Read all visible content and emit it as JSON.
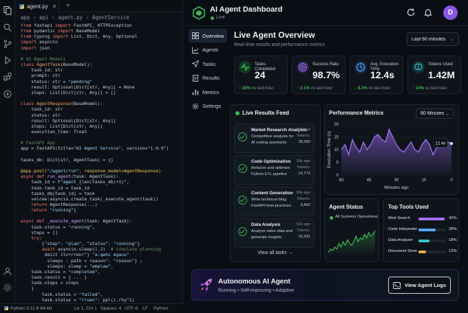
{
  "editor": {
    "tab_label": "agent.py",
    "breadcrumb": "app  ›  api  ›  agent.py  ›  AgentService",
    "code_lines": [
      [
        [
          "kw",
          "from "
        ],
        [
          "t",
          "fastapi "
        ],
        [
          "kw",
          "import "
        ],
        [
          "t",
          "FastAPI, HTTPException"
        ]
      ],
      [
        [
          "kw",
          "from "
        ],
        [
          "t",
          "pydantic "
        ],
        [
          "kw",
          "import "
        ],
        [
          "t",
          "BaseModel"
        ]
      ],
      [
        [
          "kw",
          "from "
        ],
        [
          "t",
          "typing "
        ],
        [
          "kw",
          "import "
        ],
        [
          "t",
          "List, Dict, Any, Optional"
        ]
      ],
      [
        [
          "kw",
          "import "
        ],
        [
          "t",
          "asyncio"
        ]
      ],
      [
        [
          "kw",
          "import "
        ],
        [
          "t",
          "json"
        ]
      ],
      [
        [
          "t",
          ""
        ]
      ],
      [
        [
          "cm",
          "# AI Agent Models"
        ]
      ],
      [
        [
          "kw",
          "class "
        ],
        [
          "ty",
          "AgentTask"
        ],
        [
          "t",
          "(BaseModel):"
        ]
      ],
      [
        [
          "t",
          "    task_id: str"
        ]
      ],
      [
        [
          "t",
          "    prompt: str"
        ]
      ],
      [
        [
          "t",
          "    status: str = "
        ],
        [
          "st",
          "\"pending\""
        ]
      ],
      [
        [
          "t",
          "    result: Optional[Dict[str, Any]] = None"
        ]
      ],
      [
        [
          "t",
          "    steps: List[Dict[str, Any]] = []"
        ]
      ],
      [
        [
          "t",
          ""
        ]
      ],
      [
        [
          "kw",
          "class "
        ],
        [
          "ty",
          "AgentResponse"
        ],
        [
          "t",
          "(BaseModel):"
        ]
      ],
      [
        [
          "t",
          "    task_id: str"
        ]
      ],
      [
        [
          "t",
          "    status: str"
        ]
      ],
      [
        [
          "t",
          "    result: Optional[Dict[str, Any]]"
        ]
      ],
      [
        [
          "t",
          "    steps: List[Dict[str, Any]]"
        ]
      ],
      [
        [
          "t",
          "    execution_time: float"
        ]
      ],
      [
        [
          "t",
          ""
        ]
      ],
      [
        [
          "cm",
          "# FastAPI App"
        ]
      ],
      [
        [
          "t",
          "app = FastAPI(title="
        ],
        [
          "st",
          "\"AI Agent Service\""
        ],
        [
          "t",
          ", version="
        ],
        [
          "st",
          "\"1.0.0\""
        ],
        [
          "t",
          ")"
        ]
      ],
      [
        [
          "t",
          ""
        ]
      ],
      [
        [
          "t",
          "tasks_db: Dict[str, AgentTask] = {}"
        ]
      ],
      [
        [
          "t",
          ""
        ]
      ],
      [
        [
          "dc",
          "@app.post("
        ],
        [
          "st",
          "\"/agent/run\""
        ],
        [
          "dc",
          ", response_model=AgentResponse)"
        ]
      ],
      [
        [
          "kw",
          "async def "
        ],
        [
          "fn",
          "run_agent"
        ],
        [
          "t",
          "(task: AgentTask):"
        ]
      ],
      [
        [
          "t",
          "    task_id = f"
        ],
        [
          "st",
          "\"agent_"
        ],
        [
          "t",
          "{len(tasks_db)+1}"
        ],
        [
          "st",
          "\""
        ],
        [
          "t",
          ","
        ]
      ],
      [
        [
          "t",
          "    task.task_id = task_id"
        ]
      ],
      [
        [
          "t",
          "    tasks_db[task_id] = task"
        ]
      ],
      [
        [
          "t",
          "    velcee:asyncio.create_task(_execute_agent(task))"
        ]
      ],
      [
        [
          "t",
          "    "
        ],
        [
          "kw",
          "return "
        ],
        [
          "t",
          "AgentResponse(...)"
        ]
      ],
      [
        [
          "t",
          "    "
        ],
        [
          "kw",
          "return "
        ],
        [
          "st",
          "\"running\""
        ],
        [
          "t",
          "}"
        ]
      ],
      [
        [
          "t",
          ""
        ]
      ],
      [
        [
          "kw",
          "async def "
        ],
        [
          "fn",
          "_execute_agent"
        ],
        [
          "t",
          "(task: AgentTask):"
        ]
      ],
      [
        [
          "t",
          "    task.status = "
        ],
        [
          "st",
          "\"running\""
        ],
        [
          "t",
          ","
        ]
      ],
      [
        [
          "t",
          "    steps = []"
        ]
      ],
      [
        [
          "t",
          "    "
        ],
        [
          "kw",
          "try"
        ],
        [
          "t",
          ":"
        ]
      ],
      [
        [
          "t",
          "        {"
        ],
        [
          "st",
          "\"step\""
        ],
        [
          "t",
          ": "
        ],
        [
          "st",
          "\"plan\""
        ],
        [
          "t",
          ", "
        ],
        [
          "st",
          "\"status\""
        ],
        [
          "t",
          ": "
        ],
        [
          "st",
          "\"running\""
        ],
        [
          "t",
          "}"
        ]
      ],
      [
        [
          "t",
          "        "
        ],
        [
          "kw",
          "await "
        ],
        [
          "t",
          "asyncio.sleep("
        ],
        [
          "nm",
          "1.2"
        ],
        [
          "t",
          ")  "
        ],
        [
          "cm",
          "# simulate planning"
        ]
      ],
      [
        [
          "t",
          "         ddiit ltv+rrenr"
        ],
        [
          "st",
          "\""
        ],
        [
          "t",
          "} "
        ],
        [
          "st",
          "\"a:qwhc egauu\""
        ]
      ],
      [
        [
          "t",
          "          sleeps : path = reason"
        ],
        [
          "st",
          "\": \"reason\""
        ],
        [
          "t",
          "} ;"
        ]
      ],
      [
        [
          "t",
          "          sleeps: sleep = "
        ],
        [
          "st",
          "\"emplaw\""
        ],
        [
          "t",
          ","
        ]
      ],
      [
        [
          "t",
          "    task.status = "
        ],
        [
          "st",
          "\"completed\""
        ],
        [
          "t",
          ","
        ]
      ],
      [
        [
          "t",
          "    task.result = { ... }"
        ]
      ],
      [
        [
          "t",
          "    task.steps = steps"
        ]
      ],
      [
        [
          "t",
          "    }"
        ]
      ],
      [
        [
          "t",
          "        task.status = "
        ],
        [
          "st",
          "\"failed\""
        ],
        [
          "t",
          ","
        ]
      ],
      [
        [
          "t",
          "        task.status = "
        ],
        [
          "st",
          "\"rruen\""
        ],
        [
          "t",
          ": ppl(),rhy\"1)"
        ]
      ],
      [
        [
          "t",
          "    }"
        ]
      ]
    ],
    "status": {
      "python": "Python 3.11.6 64-bit",
      "position": "Ln 1, Col 1",
      "spaces": "Spaces: 4",
      "encoding": "UTF-8",
      "eol": "LF",
      "language": "Python"
    }
  },
  "dashboard": {
    "title": "AI Agent Dashboard",
    "live_label": "Live",
    "avatar_letter": "D",
    "nav": [
      "Overview",
      "Agents",
      "Tasks",
      "Results",
      "Metrics",
      "Settings"
    ],
    "main_title": "Live Agent Overview",
    "main_subtitle": "Real-time results and performance metrics",
    "range_select": "Last 60 minutes",
    "kpis": [
      {
        "label": "Tasks Completed",
        "value": "24",
        "delta": "↑ 26%",
        "delta_rest": " vs last hour",
        "color": "#3fb950",
        "icon": "pulse-icon"
      },
      {
        "label": "Success Rate",
        "value": "98.7%",
        "delta": "↑ 2.1%",
        "delta_rest": " vs last hour",
        "color": "#a371f7",
        "icon": "target-icon"
      },
      {
        "label": "Avg. Execution Time",
        "value": "12.4s",
        "delta": "↓ 8.3%",
        "delta_rest": " vs last hour",
        "color": "#58a6ff",
        "icon": "clock-icon"
      },
      {
        "label": "Tokens Used",
        "value": "1.42M",
        "delta": "↑ 14%",
        "delta_rest": " vs last hour",
        "color": "#39c5cf",
        "icon": "brain-icon"
      }
    ],
    "feed": {
      "title": "Live Results Feed",
      "items": [
        {
          "title": "Market Research Analysis",
          "desc": "Competitive analysis for AI coding assistants",
          "ago": "2s ago",
          "label": "Tokens:",
          "number": "18,392"
        },
        {
          "title": "Code Optimization",
          "desc": "Refactor and optimize Python ETL pipeline",
          "ago": "18s ago",
          "label": "Tokens:",
          "number": "14,771"
        },
        {
          "title": "Content Generation",
          "desc": "Write technical blog: FastAPI best practices",
          "ago": "35s ago",
          "label": "Tokens:",
          "number": "9,842"
        },
        {
          "title": "Data Analysis",
          "desc": "Analyze sales data and generate insights",
          "ago": "52s ago",
          "label": "Tokens:",
          "number": "16,231"
        }
      ],
      "view_all": "View all tasks  →"
    },
    "performance": {
      "title": "Performance Metrics",
      "select": "60 Minutes",
      "tooltip": "12.4s"
    },
    "agent_status": {
      "title": "Agent Status",
      "label": "All Systems Operational"
    },
    "top_tools": {
      "title": "Top Tools Used",
      "items": [
        {
          "name": "Web Search",
          "pct": 42,
          "label": "42%",
          "color": "#a371f7"
        },
        {
          "name": "Code Interpreter",
          "pct": 28,
          "label": "28%",
          "color": "#58a6ff"
        },
        {
          "name": "Data Analyzer",
          "pct": 18,
          "label": "18%",
          "color": "#39c5cf"
        },
        {
          "name": "Document Store",
          "pct": 12,
          "label": "12%",
          "color": "#e3b341"
        }
      ]
    },
    "banner": {
      "title": "Autonomous AI Agent",
      "subtitle": "Running • Self-improving • Adaptive",
      "button": "View Agent Logs"
    }
  },
  "chart_data": [
    {
      "type": "area",
      "title": "Performance Metrics",
      "xlabel": "Minutes ago",
      "ylabel": "Execution Time (s)",
      "x_ticks": [
        60,
        45,
        30,
        15,
        0
      ],
      "y_ticks": [
        0,
        5,
        10,
        15,
        20
      ],
      "xlim": [
        60,
        0
      ],
      "ylim": [
        0,
        20
      ],
      "grid": true,
      "series": [
        {
          "color": "#a371f7",
          "x": [
            60,
            58,
            56,
            54,
            52,
            50,
            48,
            46,
            44,
            42,
            40,
            38,
            36,
            34,
            32,
            30,
            28,
            26,
            24,
            22,
            20,
            18,
            16,
            14,
            12,
            10,
            8,
            6,
            4,
            2,
            0
          ],
          "y": [
            10,
            12,
            8,
            14,
            11,
            9,
            13,
            10,
            12,
            15,
            16,
            14,
            13,
            18,
            15,
            12,
            10,
            9,
            11,
            13,
            10,
            9,
            12,
            14,
            12,
            8,
            11,
            13,
            12,
            13,
            12.4
          ]
        }
      ]
    },
    {
      "type": "line",
      "title": "Agent Status",
      "series": [
        {
          "color": "#3fb950",
          "y": [
            3,
            5,
            4,
            6,
            5,
            8,
            6,
            9,
            7,
            10,
            8,
            7,
            9,
            12,
            9,
            11,
            10,
            13,
            11,
            14,
            12,
            13,
            15
          ]
        }
      ]
    }
  ]
}
